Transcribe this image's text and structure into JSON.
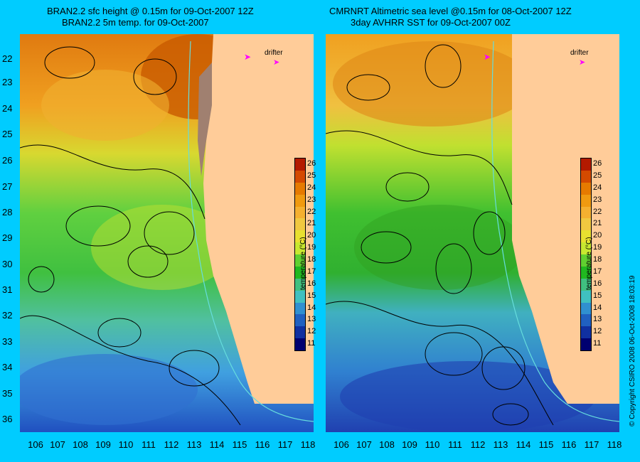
{
  "left_panel": {
    "title_line1": "BRAN2.2 sfc height @ 0.15m for 09-Oct-2007 12Z",
    "title_line2": "BRAN2.2 5m temp. for 09-Oct-2007"
  },
  "right_panel": {
    "title_line1": "CMRNRT Altimetric sea level  @0.15m  for 08-Oct-2007 12Z",
    "title_line2": "3day AVHRR SST for 09-Oct-2007 00Z"
  },
  "legend": {
    "drifter_label": "drifter",
    "colorbar_unit": "temperature (°C)",
    "colorbar_ticks": [
      "26",
      "25",
      "24",
      "23",
      "22",
      "21",
      "20",
      "19",
      "18",
      "17",
      "16",
      "15",
      "14",
      "13",
      "12",
      "11"
    ],
    "colorbar_colors": [
      "#b31a00",
      "#d44a00",
      "#e67a00",
      "#f09a10",
      "#f5b030",
      "#f0c840",
      "#e8e030",
      "#c8e830",
      "#60d030",
      "#20b820",
      "#40c080",
      "#40c0c0",
      "#3090d0",
      "#2060c0",
      "#1030a0",
      "#000070"
    ]
  },
  "axes": {
    "y_labels": [
      "22",
      "23",
      "24",
      "25",
      "26",
      "27",
      "28",
      "29",
      "30",
      "31",
      "32",
      "33",
      "34",
      "35",
      "36"
    ],
    "x_labels": [
      "106",
      "107",
      "108",
      "109",
      "110",
      "111",
      "112",
      "113",
      "114",
      "115",
      "116",
      "117",
      "118"
    ]
  },
  "copyright": "© Copyright CSIRO 2008    06-Oct-2008 18:03:19",
  "colors": {
    "background": "#00ccff",
    "land": "#ffcc99",
    "contour": "#000000",
    "isobath": "#66dddd",
    "drifter": "#ff00ff"
  }
}
